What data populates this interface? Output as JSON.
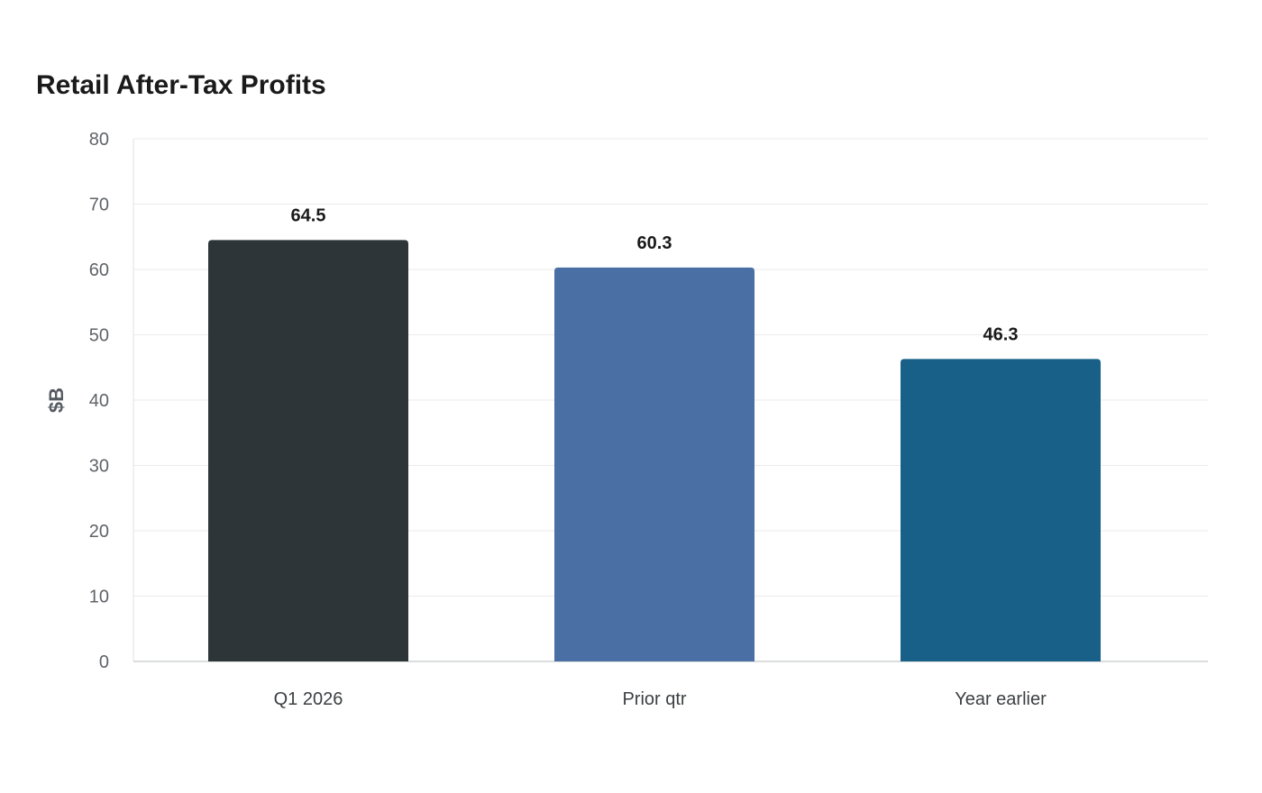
{
  "chart_data": {
    "type": "bar",
    "title": "Retail After-Tax Profits",
    "ylabel": "$B",
    "xlabel": "",
    "categories": [
      "Q1 2026",
      "Prior qtr",
      "Year earlier"
    ],
    "values": [
      64.5,
      60.3,
      46.3
    ],
    "value_labels": [
      "64.5",
      "60.3",
      "46.3"
    ],
    "bar_colors": [
      "#2e3538",
      "#4a6fa5",
      "#186088"
    ],
    "ylim": [
      0,
      80
    ],
    "yticks": [
      0,
      10,
      20,
      30,
      40,
      50,
      60,
      70,
      80
    ],
    "grid": true,
    "legend": "none"
  }
}
